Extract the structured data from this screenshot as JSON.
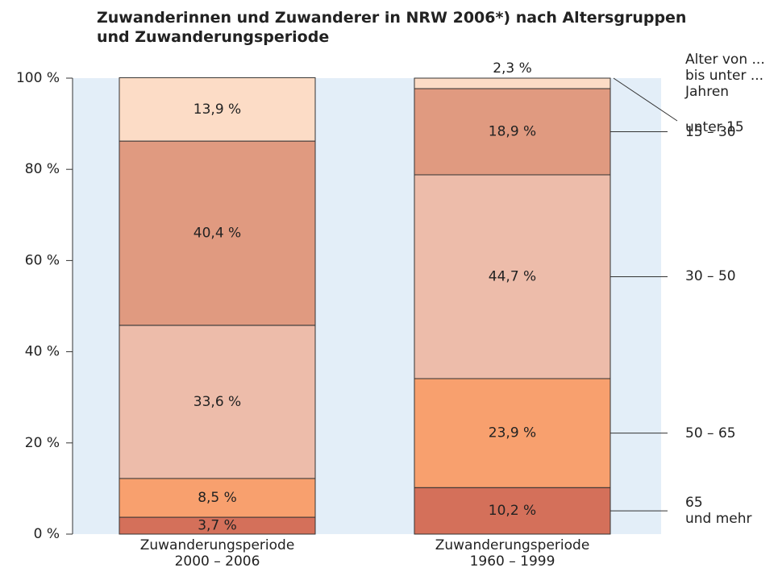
{
  "chart_data": {
    "type": "stacked_bar",
    "title": "Zuwanderinnen und Zuwanderer in NRW 2006*) nach Altersgruppen\nund Zuwanderungsperiode",
    "categories": [
      "Zuwanderungsperiode\n2000 – 2006",
      "Zuwanderungsperiode\n1960 – 1999"
    ],
    "legend_title": "Alter von ...\nbis unter ...\nJahren",
    "series": [
      {
        "name": "65\nund mehr",
        "color": "#d4705a",
        "values": [
          3.7,
          10.2
        ],
        "value_labels": [
          "3,7 %",
          "10,2 %"
        ]
      },
      {
        "name": "50 – 65",
        "color": "#f8a06e",
        "values": [
          8.5,
          23.9
        ],
        "value_labels": [
          "8,5 %",
          "23,9 %"
        ]
      },
      {
        "name": "30 – 50",
        "color": "#edbcaa",
        "values": [
          33.6,
          44.7
        ],
        "value_labels": [
          "33,6 %",
          "44,7 %"
        ]
      },
      {
        "name": "15 – 30",
        "color": "#e09a80",
        "values": [
          40.4,
          18.9
        ],
        "value_labels": [
          "40,4 %",
          "18,9 %"
        ]
      },
      {
        "name": "unter 15",
        "color": "#fcdcc6",
        "values": [
          13.9,
          2.3
        ],
        "value_labels": [
          "13,9 %",
          "2,3 %"
        ]
      }
    ],
    "ylim": [
      0,
      100
    ],
    "yticks": [
      {
        "value": 0,
        "label": "0 %"
      },
      {
        "value": 20,
        "label": "20 %"
      },
      {
        "value": 40,
        "label": "40 %"
      },
      {
        "value": 60,
        "label": "60 %"
      },
      {
        "value": 80,
        "label": "80 %"
      },
      {
        "value": 100,
        "label": "100 %"
      }
    ]
  }
}
